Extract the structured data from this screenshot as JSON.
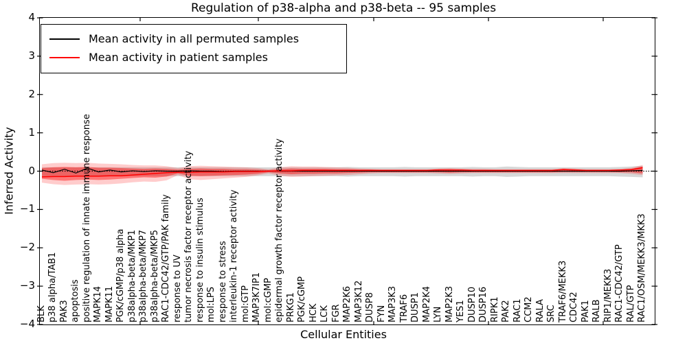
{
  "chart_data": {
    "type": "line",
    "title": "Regulation of p38-alpha and p38-beta -- 95 samples",
    "xlabel": "Cellular Entities",
    "ylabel": "Inferred Activity",
    "ylim": [
      -4,
      4
    ],
    "ytick_values": [
      4,
      3,
      2,
      1,
      0,
      -1,
      -2,
      -3,
      -4
    ],
    "ytick_labels": [
      "4",
      "3",
      "2",
      "1",
      "0",
      "−1",
      "−2",
      "−3",
      "−4"
    ],
    "grid": false,
    "legend_position": "upper left",
    "categories": [
      "BLK",
      "p38 alpha/TAB1",
      "PAK3",
      "apoptosis",
      "positive regulation of innate immune response",
      "MAPK14",
      "MAPK11",
      "PGK/cGMP/p38 alpha",
      "p38alpha-beta/MKP1",
      "p38alpha-beta/MKP7",
      "p38alpha-beta/MKP5",
      "RAC1-CDC42/GTP/PAK family",
      "response to UV",
      "tumor necrosis factor receptor activity",
      "response to insulin stimulus",
      "mol:LPS",
      "response to stress",
      "interleukin-1 receptor activity",
      "mol:GTP",
      "MAP3K7IP1",
      "mol:cGMP",
      "epidermal growth factor receptor activity",
      "PRKG1",
      "PGK/cGMP",
      "HCK",
      "LCK",
      "FGR",
      "MAP2K6",
      "MAP3K12",
      "DUSP8",
      "FYN",
      "MAP3K3",
      "TRAF6",
      "DUSP1",
      "MAP2K4",
      "LYN",
      "MAP2K3",
      "YES1",
      "DUSP10",
      "DUSP16",
      "RIPK1",
      "PAK2",
      "RAC1",
      "CCM2",
      "RALA",
      "SRC",
      "TRAF6/MEKK3",
      "CDC42",
      "PAK1",
      "RALB",
      "RIP1/MEKK3",
      "RAC1-CDC42/GTP",
      "RAL/GTP",
      "RAC1/OSM/MEKK3/MKK3"
    ],
    "series": [
      {
        "name": "Mean activity in all permuted samples",
        "color": "#000000",
        "values": [
          0.03,
          -0.04,
          0.05,
          -0.05,
          0.08,
          -0.02,
          0.03,
          -0.02,
          0.01,
          -0.01,
          0.01,
          0.0,
          0.0,
          0.01,
          0.0,
          0.0,
          -0.01,
          0.0,
          0.0,
          0.0,
          0.0,
          0.0,
          0.0,
          0.0,
          0.0,
          0.0,
          0.0,
          0.0,
          0.0,
          0.0,
          0.0,
          0.0,
          0.0,
          0.0,
          0.0,
          0.0,
          0.0,
          0.0,
          0.0,
          0.0,
          0.0,
          0.0,
          0.0,
          0.0,
          0.0,
          0.0,
          0.0,
          0.0,
          0.0,
          0.0,
          0.0,
          0.0,
          0.01,
          0.02
        ]
      },
      {
        "name": "Mean activity in patient samples",
        "color": "#ff0000",
        "values": [
          -0.15,
          -0.14,
          -0.14,
          -0.13,
          -0.13,
          -0.13,
          -0.12,
          -0.12,
          -0.1,
          -0.08,
          -0.06,
          -0.04,
          -0.03,
          -0.03,
          -0.02,
          -0.02,
          -0.02,
          -0.01,
          -0.01,
          -0.01,
          0.0,
          0.01,
          0.01,
          0.02,
          0.02,
          0.02,
          0.02,
          0.02,
          0.02,
          0.02,
          0.02,
          0.02,
          0.02,
          0.02,
          0.02,
          0.03,
          0.03,
          0.03,
          0.02,
          0.02,
          0.02,
          0.02,
          0.02,
          0.02,
          0.02,
          0.02,
          0.04,
          0.03,
          0.02,
          0.02,
          0.02,
          0.03,
          0.04,
          0.09
        ]
      }
    ],
    "bands": [
      {
        "name": "permuted samples range",
        "color": "rgba(110,110,110,0.28)",
        "high": [
          0.1,
          0.1,
          0.1,
          0.1,
          0.1,
          0.1,
          0.1,
          0.1,
          0.1,
          0.1,
          0.1,
          0.1,
          0.1,
          0.1,
          0.1,
          0.1,
          0.1,
          0.1,
          0.1,
          0.1,
          0.1,
          0.1,
          0.1,
          0.1,
          0.1,
          0.1,
          0.1,
          0.11,
          0.1,
          0.1,
          0.1,
          0.1,
          0.11,
          0.1,
          0.1,
          0.1,
          0.1,
          0.1,
          0.11,
          0.1,
          0.1,
          0.12,
          0.11,
          0.1,
          0.1,
          0.1,
          0.1,
          0.1,
          0.1,
          0.1,
          0.1,
          0.11,
          0.12,
          0.14
        ],
        "low": [
          -0.13,
          -0.13,
          -0.13,
          -0.13,
          -0.13,
          -0.13,
          -0.13,
          -0.13,
          -0.13,
          -0.13,
          -0.13,
          -0.13,
          -0.13,
          -0.13,
          -0.13,
          -0.13,
          -0.13,
          -0.13,
          -0.13,
          -0.13,
          -0.13,
          -0.13,
          -0.13,
          -0.13,
          -0.13,
          -0.13,
          -0.13,
          -0.14,
          -0.13,
          -0.13,
          -0.13,
          -0.13,
          -0.14,
          -0.13,
          -0.13,
          -0.13,
          -0.13,
          -0.13,
          -0.14,
          -0.13,
          -0.13,
          -0.15,
          -0.14,
          -0.13,
          -0.13,
          -0.13,
          -0.13,
          -0.13,
          -0.13,
          -0.13,
          -0.13,
          -0.14,
          -0.15,
          -0.16
        ]
      },
      {
        "name": "patient samples outer range",
        "color": "rgba(255,0,0,0.20)",
        "high": [
          0.18,
          0.21,
          0.22,
          0.21,
          0.22,
          0.2,
          0.19,
          0.18,
          0.16,
          0.15,
          0.15,
          0.13,
          0.08,
          0.13,
          0.14,
          0.13,
          0.12,
          0.11,
          0.1,
          0.08,
          0.05,
          0.1,
          0.13,
          0.12,
          0.12,
          0.11,
          0.1,
          0.09,
          0.07,
          0.06,
          0.05,
          0.05,
          0.05,
          0.05,
          0.05,
          0.07,
          0.08,
          0.07,
          0.06,
          0.06,
          0.05,
          0.05,
          0.05,
          0.05,
          0.05,
          0.05,
          0.08,
          0.07,
          0.05,
          0.05,
          0.05,
          0.06,
          0.09,
          0.16
        ],
        "low": [
          -0.3,
          -0.34,
          -0.36,
          -0.35,
          -0.34,
          -0.35,
          -0.34,
          -0.32,
          -0.29,
          -0.27,
          -0.28,
          -0.24,
          -0.1,
          -0.21,
          -0.23,
          -0.21,
          -0.19,
          -0.17,
          -0.15,
          -0.11,
          -0.06,
          -0.12,
          -0.15,
          -0.14,
          -0.13,
          -0.12,
          -0.11,
          -0.1,
          -0.08,
          -0.06,
          -0.05,
          -0.05,
          -0.05,
          -0.05,
          -0.05,
          -0.06,
          -0.07,
          -0.06,
          -0.05,
          -0.05,
          -0.05,
          -0.05,
          -0.05,
          -0.05,
          -0.05,
          -0.05,
          -0.05,
          -0.05,
          -0.05,
          -0.05,
          -0.05,
          -0.05,
          -0.07,
          -0.1
        ]
      },
      {
        "name": "patient samples inner range",
        "color": "rgba(255,0,0,0.42)",
        "high": [
          0.08,
          0.1,
          0.11,
          0.1,
          0.11,
          0.09,
          0.09,
          0.08,
          0.07,
          0.06,
          0.07,
          0.06,
          0.04,
          0.06,
          0.07,
          0.06,
          0.06,
          0.05,
          0.05,
          0.04,
          0.03,
          0.05,
          0.07,
          0.06,
          0.06,
          0.06,
          0.05,
          0.05,
          0.04,
          0.04,
          0.03,
          0.03,
          0.03,
          0.03,
          0.03,
          0.05,
          0.05,
          0.04,
          0.03,
          0.03,
          0.03,
          0.03,
          0.03,
          0.03,
          0.03,
          0.03,
          0.06,
          0.05,
          0.03,
          0.03,
          0.03,
          0.04,
          0.06,
          0.12
        ],
        "low": [
          -0.2,
          -0.23,
          -0.25,
          -0.23,
          -0.22,
          -0.23,
          -0.22,
          -0.2,
          -0.18,
          -0.16,
          -0.17,
          -0.14,
          -0.06,
          -0.12,
          -0.13,
          -0.12,
          -0.11,
          -0.1,
          -0.09,
          -0.07,
          -0.03,
          -0.06,
          -0.08,
          -0.07,
          -0.07,
          -0.06,
          -0.06,
          -0.05,
          -0.04,
          -0.03,
          -0.03,
          -0.03,
          -0.03,
          -0.03,
          -0.03,
          -0.03,
          -0.04,
          -0.03,
          -0.03,
          -0.03,
          -0.03,
          -0.03,
          -0.03,
          -0.03,
          -0.03,
          -0.03,
          -0.02,
          -0.02,
          -0.02,
          -0.02,
          -0.02,
          -0.03,
          -0.03,
          -0.06
        ]
      }
    ],
    "zero_line": {
      "value": 0,
      "style": "dotted",
      "color": "#000000"
    }
  }
}
